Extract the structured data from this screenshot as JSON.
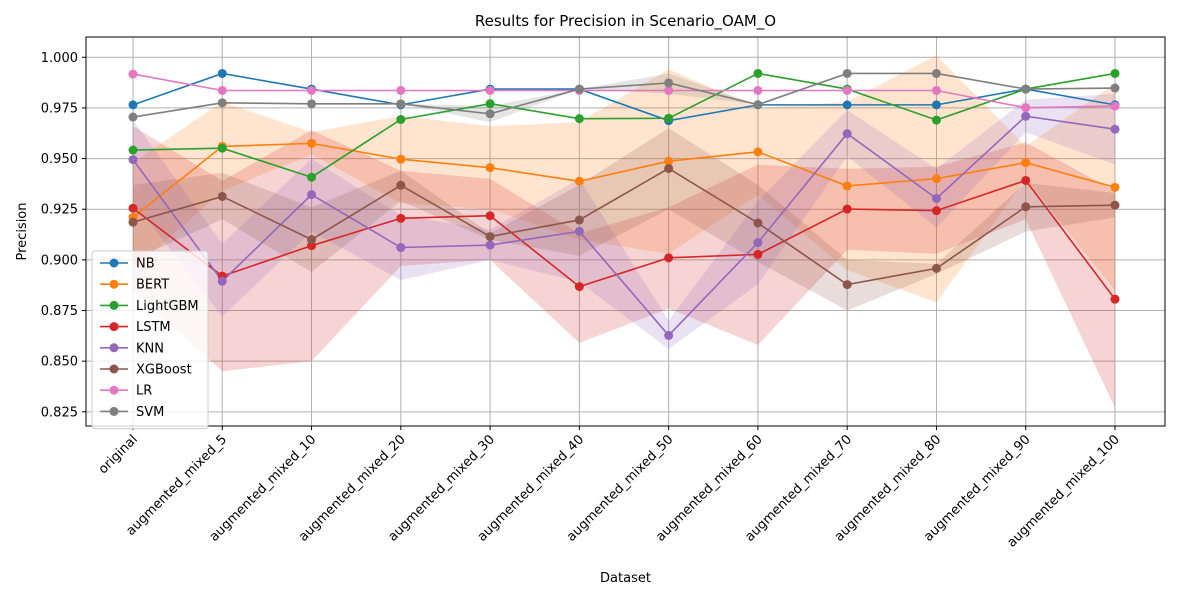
{
  "chart_data": {
    "type": "line",
    "title": "Results for Precision in Scenario_OAM_O",
    "xlabel": "Dataset",
    "ylabel": "Precision",
    "ylim": [
      0.818,
      1.01
    ],
    "yticks": [
      0.825,
      0.85,
      0.875,
      0.9,
      0.925,
      0.95,
      0.975,
      1.0
    ],
    "ytick_labels": [
      "0.825",
      "0.850",
      "0.875",
      "0.900",
      "0.925",
      "0.950",
      "0.975",
      "1.000"
    ],
    "grid": true,
    "legend_position": "lower-left",
    "categories": [
      "original",
      "augmented_mixed_5",
      "augmented_mixed_10",
      "augmented_mixed_20",
      "augmented_mixed_30",
      "augmented_mixed_40",
      "augmented_mixed_50",
      "augmented_mixed_60",
      "augmented_mixed_70",
      "augmented_mixed_80",
      "augmented_mixed_90",
      "augmented_mixed_100"
    ],
    "series": [
      {
        "name": "NB",
        "color": "#1f77b4",
        "values": [
          0.9765,
          0.992,
          0.9843,
          0.9765,
          0.9843,
          0.9843,
          0.9687,
          0.9765,
          0.9765,
          0.9765,
          0.9843,
          0.9765
        ],
        "lower": [
          0.9765,
          0.992,
          0.9843,
          0.9765,
          0.9843,
          0.9843,
          0.9687,
          0.9765,
          0.9765,
          0.9765,
          0.9843,
          0.9765
        ],
        "upper": [
          0.9765,
          0.992,
          0.9843,
          0.9765,
          0.9843,
          0.9843,
          0.9687,
          0.9765,
          0.9765,
          0.9765,
          0.9843,
          0.9765
        ]
      },
      {
        "name": "BERT",
        "color": "#ff7f0e",
        "values": [
          0.921,
          0.956,
          0.9575,
          0.9497,
          0.9455,
          0.9388,
          0.9487,
          0.9533,
          0.9365,
          0.9401,
          0.948,
          0.9358
        ],
        "lower": [
          0.895,
          0.934,
          0.952,
          0.928,
          0.925,
          0.91,
          0.903,
          0.932,
          0.895,
          0.879,
          0.94,
          0.885
        ],
        "upper": [
          0.948,
          0.978,
          0.963,
          0.971,
          0.966,
          0.968,
          0.994,
          0.975,
          0.978,
          1.001,
          0.956,
          0.987
        ]
      },
      {
        "name": "LightGBM",
        "color": "#2ca02c",
        "values": [
          0.9542,
          0.9551,
          0.9408,
          0.9693,
          0.9771,
          0.9697,
          0.9699,
          0.992,
          0.9843,
          0.969,
          0.9843,
          0.992
        ],
        "lower": [
          0.9542,
          0.9551,
          0.9408,
          0.9693,
          0.9771,
          0.9697,
          0.9699,
          0.992,
          0.9843,
          0.969,
          0.9843,
          0.992
        ],
        "upper": [
          0.9542,
          0.9551,
          0.9408,
          0.9693,
          0.9771,
          0.9697,
          0.9699,
          0.992,
          0.9843,
          0.969,
          0.9843,
          0.992
        ]
      },
      {
        "name": "LSTM",
        "color": "#d62728",
        "values": [
          0.9255,
          0.892,
          0.907,
          0.9205,
          0.9218,
          0.8868,
          0.901,
          0.9027,
          0.9251,
          0.9243,
          0.9392,
          0.8806
        ],
        "lower": [
          0.885,
          0.845,
          0.85,
          0.897,
          0.9,
          0.859,
          0.876,
          0.858,
          0.905,
          0.903,
          0.92,
          0.827
        ],
        "upper": [
          0.966,
          0.939,
          0.964,
          0.944,
          0.94,
          0.913,
          0.926,
          0.947,
          0.945,
          0.946,
          0.958,
          0.934
        ]
      },
      {
        "name": "KNN",
        "color": "#9467bd",
        "values": [
          0.9495,
          0.8895,
          0.9322,
          0.9061,
          0.9073,
          0.9141,
          0.8627,
          0.9085,
          0.9623,
          0.9303,
          0.9709,
          0.9645
        ],
        "lower": [
          0.929,
          0.872,
          0.914,
          0.89,
          0.9,
          0.889,
          0.856,
          0.888,
          0.951,
          0.916,
          0.963,
          0.947
        ],
        "upper": [
          0.969,
          0.908,
          0.95,
          0.922,
          0.915,
          0.94,
          0.87,
          0.929,
          0.974,
          0.945,
          0.979,
          0.982
        ]
      },
      {
        "name": "XGBoost",
        "color": "#8c564b",
        "values": [
          0.9186,
          0.9313,
          0.91,
          0.9368,
          0.9115,
          0.9197,
          0.9451,
          0.9182,
          0.8878,
          0.8958,
          0.9262,
          0.927
        ],
        "lower": [
          0.9,
          0.92,
          0.894,
          0.929,
          0.91,
          0.902,
          0.925,
          0.899,
          0.875,
          0.893,
          0.914,
          0.921
        ],
        "upper": [
          0.937,
          0.943,
          0.926,
          0.944,
          0.913,
          0.937,
          0.965,
          0.937,
          0.9,
          0.898,
          0.938,
          0.933
        ]
      },
      {
        "name": "LR",
        "color": "#e377c2",
        "values": [
          0.9917,
          0.9836,
          0.9836,
          0.9836,
          0.9836,
          0.9836,
          0.9836,
          0.9836,
          0.9836,
          0.9836,
          0.9751,
          0.9759
        ],
        "lower": [
          0.9917,
          0.9836,
          0.9836,
          0.9836,
          0.9836,
          0.9836,
          0.9836,
          0.9836,
          0.9836,
          0.9836,
          0.9751,
          0.9759
        ],
        "upper": [
          0.9917,
          0.9836,
          0.9836,
          0.9836,
          0.9836,
          0.9836,
          0.9836,
          0.9836,
          0.9836,
          0.9836,
          0.9751,
          0.9759
        ]
      },
      {
        "name": "SVM",
        "color": "#7f7f7f",
        "values": [
          0.9705,
          0.9775,
          0.977,
          0.977,
          0.9721,
          0.9843,
          0.9873,
          0.9766,
          0.992,
          0.992,
          0.9843,
          0.9848
        ],
        "lower": [
          0.9705,
          0.9775,
          0.977,
          0.977,
          0.968,
          0.9843,
          0.982,
          0.9766,
          0.992,
          0.992,
          0.9843,
          0.9848
        ],
        "upper": [
          0.9705,
          0.9775,
          0.977,
          0.977,
          0.976,
          0.9843,
          0.992,
          0.9766,
          0.992,
          0.992,
          0.9843,
          0.9848
        ]
      }
    ]
  }
}
